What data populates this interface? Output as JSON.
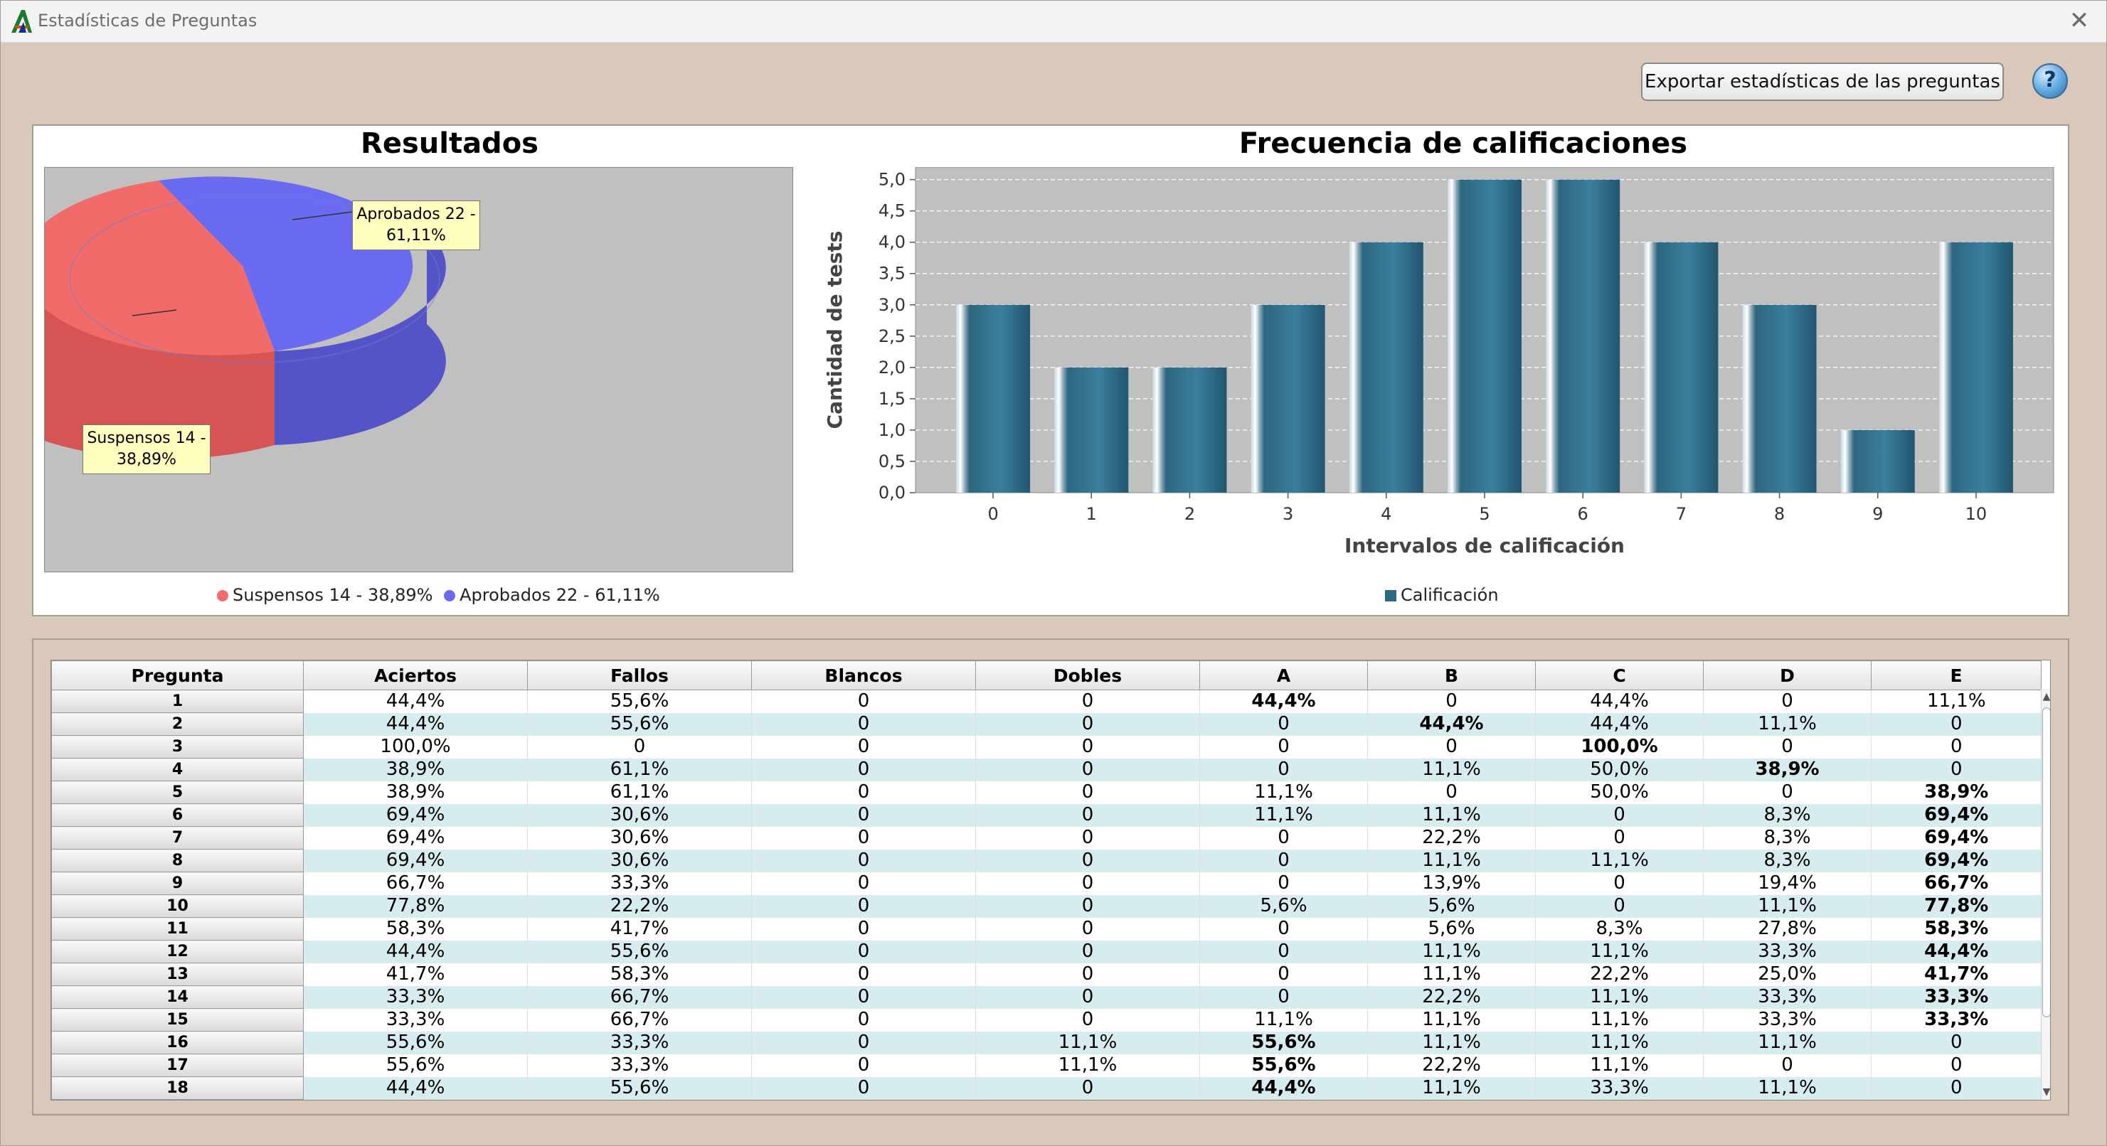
{
  "window": {
    "title": "Estadísticas de Preguntas",
    "close_symbol": "✕"
  },
  "toolbar": {
    "export_label": "Exportar estadísticas de las preguntas",
    "help_symbol": "?"
  },
  "colors": {
    "suspensos": "#f26b6b",
    "aprobados": "#6b6bf2",
    "bar": "#2d6782",
    "plot_bg": "#c0c0c0"
  },
  "pie": {
    "title": "Resultados",
    "slices": [
      {
        "label": "Suspensos 14 - 38,89%",
        "value": 14,
        "percent": 38.89
      },
      {
        "label": "Aprobados 22 - 61,11%",
        "value": 22,
        "percent": 61.11
      }
    ],
    "callout_suspensos": [
      "Suspensos 14 -",
      "38,89%"
    ],
    "callout_aprobados": [
      "Aprobados 22 -",
      "61,11%"
    ],
    "legend": {
      "suspensos": "Suspensos 14 - 38,89%",
      "aprobados": "Aprobados 22 - 61,11%"
    }
  },
  "chart_data": {
    "type": "bar",
    "title": "Frecuencia de calificaciones",
    "xlabel": "Intervalos de calificación",
    "ylabel": "Cantidad de tests",
    "categories": [
      "0",
      "1",
      "2",
      "3",
      "4",
      "5",
      "6",
      "7",
      "8",
      "9",
      "10"
    ],
    "series": [
      {
        "name": "Calificación",
        "values": [
          3,
          2,
          2,
          3,
          4,
          5,
          5,
          4,
          3,
          1,
          4
        ]
      }
    ],
    "ylim": [
      0,
      5.2
    ],
    "yticks": [
      "0,0",
      "0,5",
      "1,0",
      "1,5",
      "2,0",
      "2,5",
      "3,0",
      "3,5",
      "4,0",
      "4,5",
      "5,0"
    ],
    "grid": true,
    "legend_position": "bottom"
  },
  "table": {
    "headers": [
      "Pregunta",
      "Aciertos",
      "Fallos",
      "Blancos",
      "Dobles",
      "A",
      "B",
      "C",
      "D",
      "E"
    ],
    "rows": [
      [
        "1",
        "44,4%",
        "55,6%",
        "0",
        "0",
        "44,4%",
        "0",
        "44,4%",
        "0",
        "11,1%"
      ],
      [
        "2",
        "44,4%",
        "55,6%",
        "0",
        "0",
        "0",
        "44,4%",
        "44,4%",
        "11,1%",
        "0"
      ],
      [
        "3",
        "100,0%",
        "0",
        "0",
        "0",
        "0",
        "0",
        "100,0%",
        "0",
        "0"
      ],
      [
        "4",
        "38,9%",
        "61,1%",
        "0",
        "0",
        "0",
        "11,1%",
        "50,0%",
        "38,9%",
        "0"
      ],
      [
        "5",
        "38,9%",
        "61,1%",
        "0",
        "0",
        "11,1%",
        "0",
        "50,0%",
        "0",
        "38,9%"
      ],
      [
        "6",
        "69,4%",
        "30,6%",
        "0",
        "0",
        "11,1%",
        "11,1%",
        "0",
        "8,3%",
        "69,4%"
      ],
      [
        "7",
        "69,4%",
        "30,6%",
        "0",
        "0",
        "0",
        "22,2%",
        "0",
        "8,3%",
        "69,4%"
      ],
      [
        "8",
        "69,4%",
        "30,6%",
        "0",
        "0",
        "0",
        "11,1%",
        "11,1%",
        "8,3%",
        "69,4%"
      ],
      [
        "9",
        "66,7%",
        "33,3%",
        "0",
        "0",
        "0",
        "13,9%",
        "0",
        "19,4%",
        "66,7%"
      ],
      [
        "10",
        "77,8%",
        "22,2%",
        "0",
        "0",
        "5,6%",
        "5,6%",
        "0",
        "11,1%",
        "77,8%"
      ],
      [
        "11",
        "58,3%",
        "41,7%",
        "0",
        "0",
        "0",
        "5,6%",
        "8,3%",
        "27,8%",
        "58,3%"
      ],
      [
        "12",
        "44,4%",
        "55,6%",
        "0",
        "0",
        "0",
        "11,1%",
        "11,1%",
        "33,3%",
        "44,4%"
      ],
      [
        "13",
        "41,7%",
        "58,3%",
        "0",
        "0",
        "0",
        "11,1%",
        "22,2%",
        "25,0%",
        "41,7%"
      ],
      [
        "14",
        "33,3%",
        "66,7%",
        "0",
        "0",
        "0",
        "22,2%",
        "11,1%",
        "33,3%",
        "33,3%"
      ],
      [
        "15",
        "33,3%",
        "66,7%",
        "0",
        "0",
        "11,1%",
        "11,1%",
        "11,1%",
        "33,3%",
        "33,3%"
      ],
      [
        "16",
        "55,6%",
        "33,3%",
        "0",
        "11,1%",
        "55,6%",
        "11,1%",
        "11,1%",
        "11,1%",
        "0"
      ],
      [
        "17",
        "55,6%",
        "33,3%",
        "0",
        "11,1%",
        "55,6%",
        "22,2%",
        "11,1%",
        "0",
        "0"
      ],
      [
        "18",
        "44,4%",
        "55,6%",
        "0",
        "0",
        "44,4%",
        "11,1%",
        "33,3%",
        "11,1%",
        "0"
      ]
    ],
    "correct_column": [
      "A",
      "B",
      "C",
      "D",
      "E",
      "E",
      "E",
      "E",
      "E",
      "E",
      "E",
      "E",
      "E",
      "E",
      "E",
      "A",
      "A",
      "A"
    ],
    "scroll": {
      "up_symbol": "▲",
      "down_symbol": "▼"
    }
  }
}
